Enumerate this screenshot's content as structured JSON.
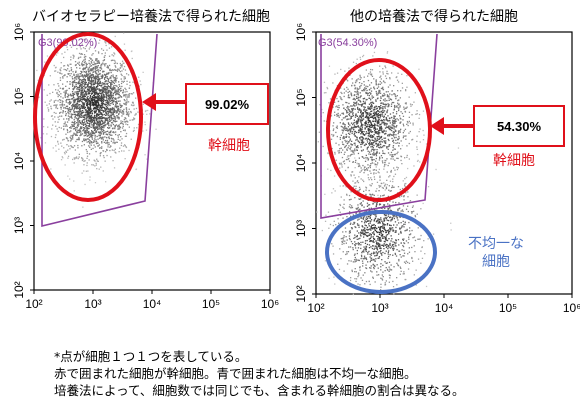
{
  "panels": [
    {
      "title": "バイオセラピー培養法で得られた細胞",
      "gate_label": "G3(99.02%)",
      "callout_value": "99.02%",
      "stem_label": "幹細胞",
      "other_label_line1": "",
      "other_label_line2": ""
    },
    {
      "title": "他の培養法で得られた細胞",
      "gate_label": "G3(54.30%)",
      "callout_value": "54.30%",
      "stem_label": "幹細胞",
      "other_label_line1": "不均一な",
      "other_label_line2": "細胞"
    }
  ],
  "notes": [
    "*点が細胞１つ１つを表している。",
    "赤で囲まれた細胞が幹細胞。青で囲まれた細胞は不均一な細胞。",
    "培養法によって、細胞数では同じでも、含まれる幹細胞の割合は異なる。"
  ],
  "colors": {
    "red": "#e0101a",
    "blue": "#4a72c4",
    "gate": "#8a3f9e",
    "dots": "#5a5a5a"
  },
  "chart_data": [
    {
      "type": "scatter",
      "scale": "log",
      "xlim": [
        100,
        1000000
      ],
      "ylim": [
        100,
        1000000
      ],
      "xticks": [
        "10²",
        "10³",
        "10⁴",
        "10⁵",
        "10⁶"
      ],
      "yticks": [
        "10²",
        "10³",
        "10⁴",
        "10⁵",
        "10⁶"
      ],
      "clusters": [
        {
          "center_x": 1000,
          "center_y": 80000,
          "count": 2600
        }
      ],
      "gate_percent": 99.02
    },
    {
      "type": "scatter",
      "scale": "log",
      "xlim": [
        100,
        1000000
      ],
      "ylim": [
        100,
        1000000
      ],
      "xticks": [
        "10²",
        "10³",
        "10⁴",
        "10⁵",
        "10⁶"
      ],
      "yticks": [
        "10²",
        "10³",
        "10⁴",
        "10⁵",
        "10⁶"
      ],
      "clusters": [
        {
          "center_x": 700,
          "center_y": 40000,
          "count": 1500
        },
        {
          "center_x": 900,
          "center_y": 900,
          "count": 1100
        }
      ],
      "gate_percent": 54.3
    }
  ]
}
